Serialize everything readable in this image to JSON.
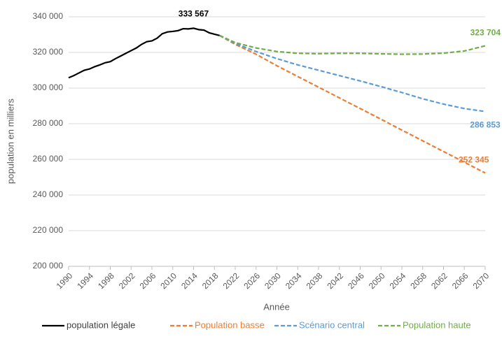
{
  "chart_data": {
    "type": "line",
    "x_label": "Année",
    "y_label": "population en milliers",
    "xlim": [
      1990,
      2070
    ],
    "xticks": [
      1990,
      1994,
      1998,
      2002,
      2006,
      2010,
      2014,
      2018,
      2022,
      2026,
      2030,
      2034,
      2038,
      2042,
      2046,
      2050,
      2054,
      2058,
      2062,
      2066,
      2070
    ],
    "ylim": [
      200000,
      340000
    ],
    "yticks": [
      {
        "value": 200000,
        "label": "200 000"
      },
      {
        "value": 220000,
        "label": "220 000"
      },
      {
        "value": 240000,
        "label": "240 000"
      },
      {
        "value": 260000,
        "label": "260 000"
      },
      {
        "value": 280000,
        "label": "280 000"
      },
      {
        "value": 300000,
        "label": "300 000"
      },
      {
        "value": 320000,
        "label": "320 000"
      },
      {
        "value": 340000,
        "label": "340 000"
      }
    ],
    "grid": true,
    "legend": "bottom",
    "series": [
      {
        "name": "population légale",
        "color": "#000000",
        "dashed": false,
        "x": [
          1990,
          1991,
          1992,
          1993,
          1994,
          1995,
          1996,
          1997,
          1998,
          1999,
          2000,
          2001,
          2002,
          2003,
          2004,
          2005,
          2006,
          2007,
          2008,
          2009,
          2010,
          2011,
          2012,
          2013,
          2014,
          2015,
          2016,
          2017,
          2018,
          2019
        ],
        "values": [
          305800,
          307000,
          308500,
          310000,
          310700,
          312000,
          313000,
          314200,
          314800,
          316500,
          318000,
          319500,
          321000,
          322500,
          324500,
          326000,
          326500,
          328000,
          330500,
          331500,
          331800,
          332200,
          333300,
          333200,
          333567,
          332800,
          332500,
          331000,
          330200,
          329500
        ],
        "value_labels": [
          null,
          null,
          null,
          null,
          null,
          null,
          null,
          null,
          null,
          null,
          null,
          null,
          null,
          null,
          null,
          null,
          null,
          null,
          null,
          null,
          null,
          null,
          null,
          null,
          "333 567",
          null,
          null,
          null,
          null,
          null
        ]
      },
      {
        "name": "Population basse",
        "color": "#ED7D31",
        "dashed": true,
        "x": [
          2019,
          2022,
          2026,
          2030,
          2034,
          2038,
          2042,
          2046,
          2050,
          2054,
          2058,
          2062,
          2066,
          2070
        ],
        "values": [
          329500,
          324500,
          319000,
          312500,
          306500,
          300500,
          294500,
          288500,
          282500,
          276400,
          270400,
          264400,
          258400,
          252345
        ],
        "value_labels": [
          null,
          null,
          null,
          null,
          null,
          null,
          null,
          null,
          null,
          null,
          null,
          null,
          null,
          "252 345"
        ]
      },
      {
        "name": "Scénario central",
        "color": "#5B9BD5",
        "dashed": true,
        "x": [
          2019,
          2022,
          2026,
          2030,
          2034,
          2038,
          2042,
          2046,
          2050,
          2054,
          2058,
          2062,
          2066,
          2070
        ],
        "values": [
          329500,
          325000,
          320500,
          316500,
          313000,
          310000,
          307000,
          304000,
          300800,
          297500,
          294000,
          291000,
          288500,
          286853
        ],
        "value_labels": [
          null,
          null,
          null,
          null,
          null,
          null,
          null,
          null,
          null,
          null,
          null,
          null,
          null,
          "286 853"
        ]
      },
      {
        "name": "Population haute",
        "color": "#70AD47",
        "dashed": true,
        "x": [
          2019,
          2022,
          2026,
          2030,
          2034,
          2038,
          2042,
          2046,
          2050,
          2054,
          2058,
          2062,
          2066,
          2070
        ],
        "values": [
          329500,
          325500,
          322500,
          320500,
          319500,
          319300,
          319500,
          319500,
          319200,
          319000,
          319100,
          319600,
          320800,
          323704
        ],
        "value_labels": [
          null,
          null,
          null,
          null,
          null,
          null,
          null,
          null,
          null,
          null,
          null,
          null,
          null,
          "323 704"
        ]
      }
    ]
  }
}
